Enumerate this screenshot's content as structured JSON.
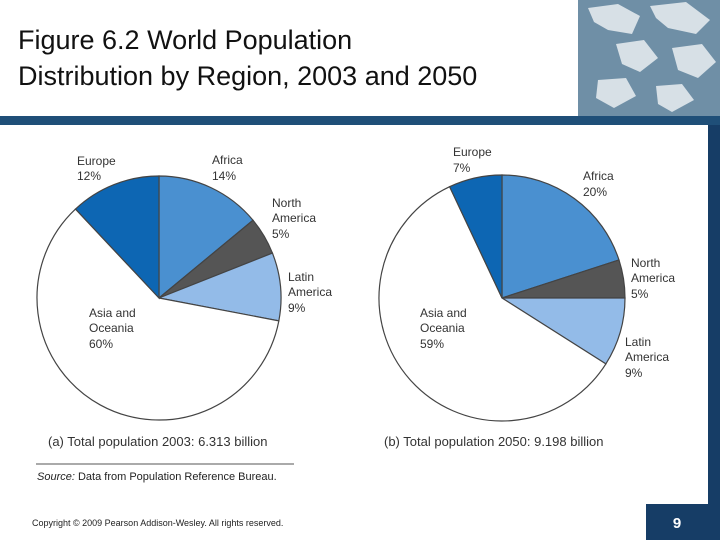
{
  "slide": {
    "title_line1": "Figure 6.2 World Population",
    "title_line2": "Distribution by Region, 2003 and 2050",
    "copyright": "Copyright © 2009 Pearson Addison-Wesley. All rights reserved.",
    "page_number": "9"
  },
  "colors": {
    "Africa": "#4a90d0",
    "North America": "#555555",
    "Latin America": "#93bbe8",
    "Asia and Oceania": "#ffffff",
    "Europe": "#0d66b3",
    "accent_bar": "#1f4f78"
  },
  "chart_data": [
    {
      "type": "pie",
      "caption": "(a) Total population 2003: 6.313 billion",
      "slices": [
        {
          "label": "Africa",
          "value": 14,
          "text": "14%"
        },
        {
          "label": "North America",
          "value": 5,
          "text": "5%"
        },
        {
          "label": "Latin America",
          "value": 9,
          "text": "9%"
        },
        {
          "label": "Asia and Oceania",
          "value": 60,
          "text": "60%"
        },
        {
          "label": "Europe",
          "value": 12,
          "text": "12%"
        }
      ],
      "source_prefix": "Source:",
      "source_text": " Data from Population Reference Bureau."
    },
    {
      "type": "pie",
      "caption": "(b) Total population 2050: 9.198 billion",
      "slices": [
        {
          "label": "Africa",
          "value": 20,
          "text": "20%"
        },
        {
          "label": "North America",
          "value": 5,
          "text": "5%"
        },
        {
          "label": "Latin America",
          "value": 9,
          "text": "9%"
        },
        {
          "label": "Asia and Oceania",
          "value": 59,
          "text": "59%"
        },
        {
          "label": "Europe",
          "value": 7,
          "text": "7%"
        }
      ]
    }
  ]
}
